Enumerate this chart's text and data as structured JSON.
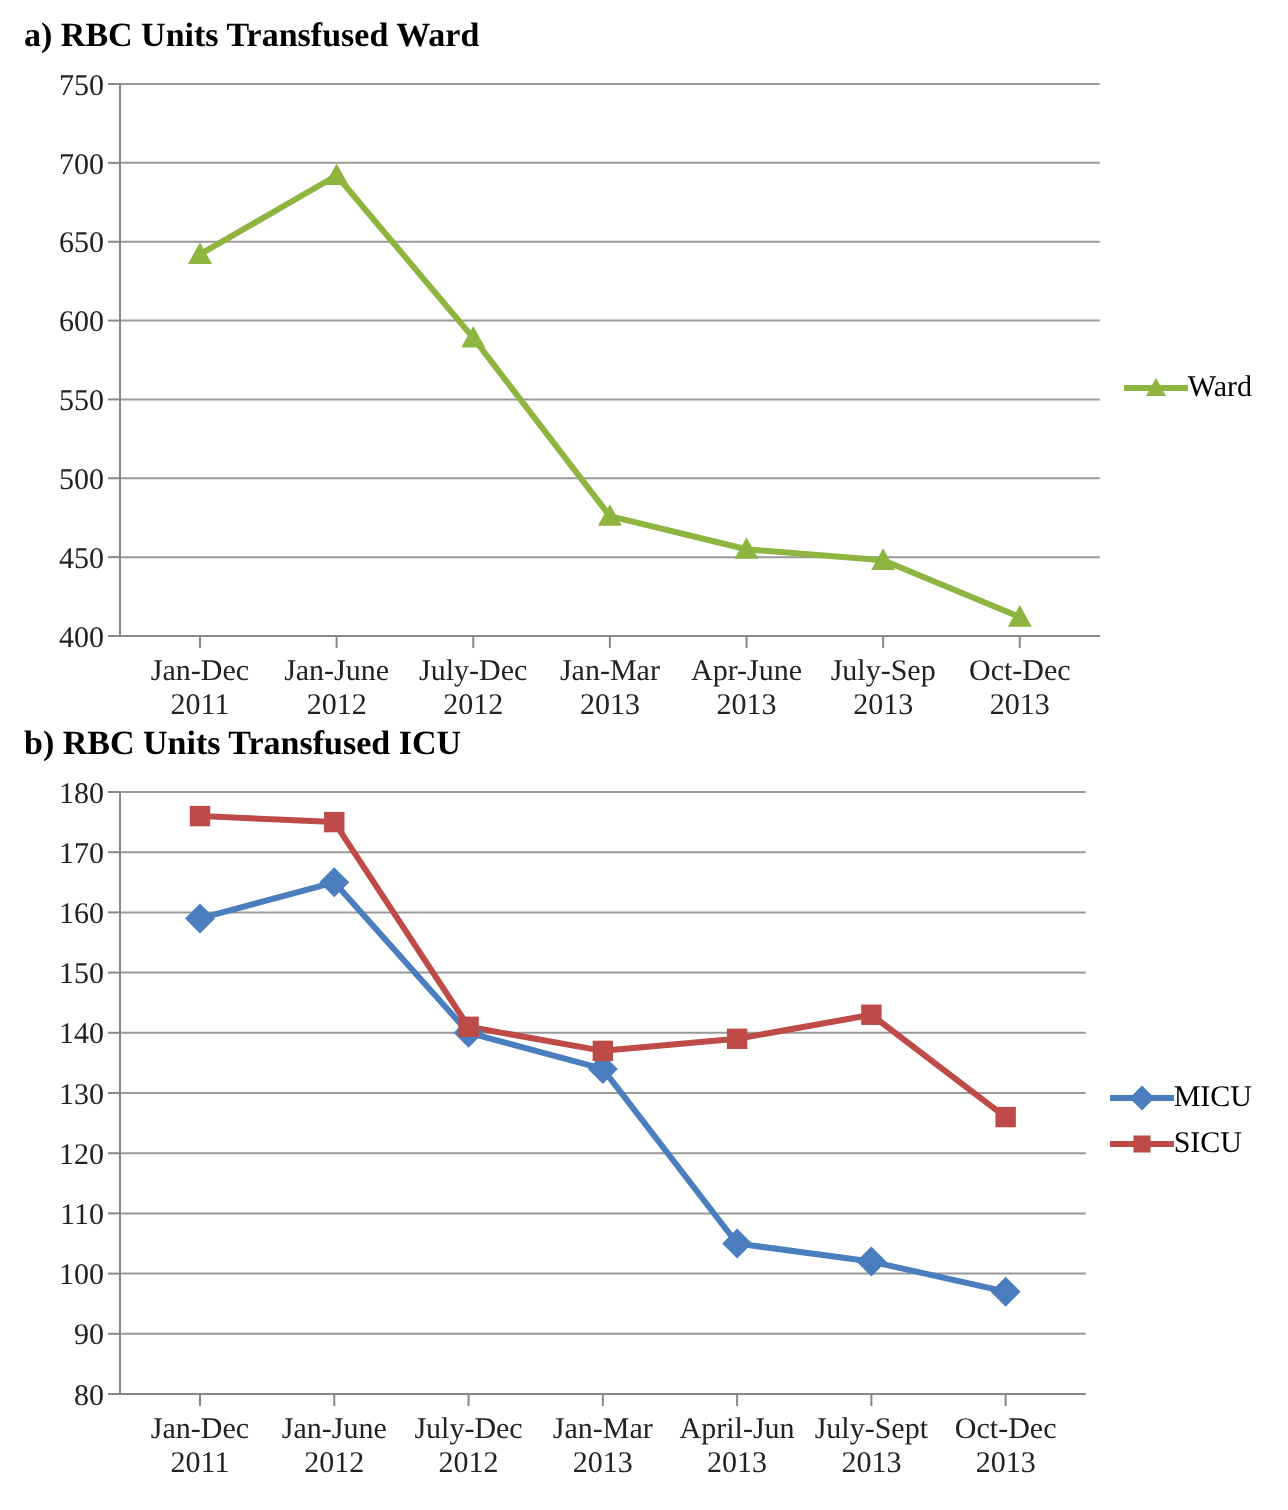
{
  "chart_data": [
    {
      "type": "line",
      "title": "a) RBC Units Transfused Ward",
      "categories": [
        "Jan-Dec 2011",
        "Jan-June 2012",
        "July-Dec 2012",
        "Jan-Mar 2013",
        "Apr-June 2013",
        "July-Sep 2013",
        "Oct-Dec 2013"
      ],
      "series": [
        {
          "name": "Ward",
          "color": "#8db53f",
          "marker": "triangle",
          "values": [
            642,
            692,
            589,
            476,
            455,
            448,
            412
          ]
        }
      ],
      "ylim": [
        400,
        750
      ],
      "yticks": [
        400,
        450,
        500,
        550,
        600,
        650,
        700,
        750
      ],
      "grid": "y",
      "legend": "right",
      "line_style": "solid"
    },
    {
      "type": "line",
      "title": "b) RBC Units Transfused ICU",
      "categories": [
        "Jan-Dec 2011",
        "Jan-June 2012",
        "July-Dec 2012",
        "Jan-Mar 2013",
        "April-Jun 2013",
        "July-Sept 2013",
        "Oct-Dec 2013"
      ],
      "series": [
        {
          "name": "MICU",
          "color": "#4a7ebf",
          "marker": "diamond",
          "values": [
            159,
            165,
            140,
            134,
            105,
            102,
            97
          ]
        },
        {
          "name": "SICU",
          "color": "#be4b48",
          "marker": "square",
          "values": [
            176,
            175,
            141,
            137,
            139,
            143,
            126
          ]
        }
      ],
      "ylim": [
        80,
        180
      ],
      "yticks": [
        80,
        90,
        100,
        110,
        120,
        130,
        140,
        150,
        160,
        170,
        180
      ],
      "grid": "y",
      "legend": "right",
      "line_style": "solid"
    }
  ]
}
